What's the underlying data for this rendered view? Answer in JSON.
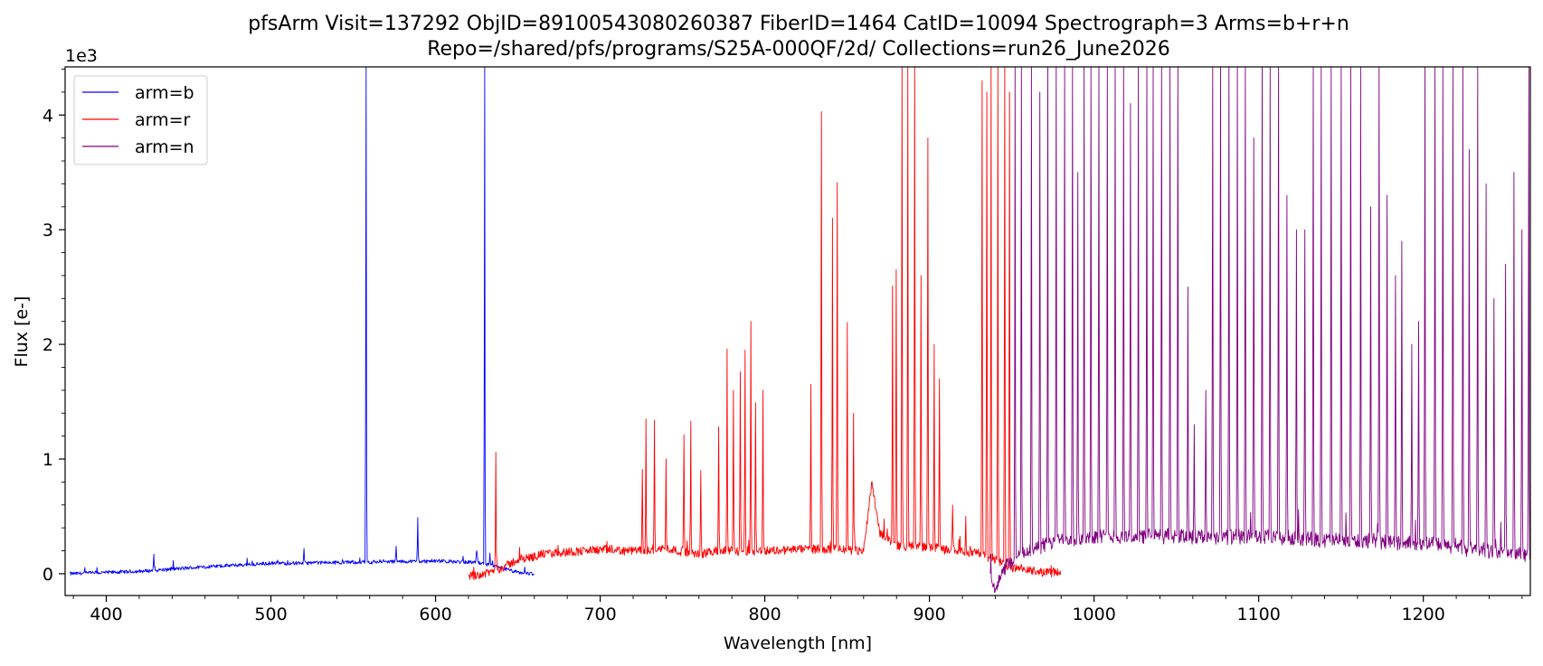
{
  "chart_data": {
    "type": "line",
    "title": "pfsArm  Visit=137292  ObjID=89100543080260387  FiberID=1464  CatID=10094  Spectrograph=3  Arms=b+r+n",
    "subtitle": "Repo=/shared/pfs/programs/S25A-000QF/2d/  Collections=run26_June2026",
    "xlabel": "Wavelength [nm]",
    "ylabel": "Flux [e-]",
    "y_offset_label": "1e3",
    "xlim": [
      375,
      1265
    ],
    "ylim": [
      -0.19,
      4.42
    ],
    "y_units_multiplier": 1000,
    "x_ticks": [
      400,
      500,
      600,
      700,
      800,
      900,
      1000,
      1100,
      1200
    ],
    "x_tick_labels": [
      "400",
      "500",
      "600",
      "700",
      "800",
      "900",
      "1000",
      "1100",
      "1200"
    ],
    "y_ticks": [
      0,
      1,
      2,
      3,
      4
    ],
    "y_tick_labels": [
      "0",
      "1",
      "2",
      "3",
      "4"
    ],
    "grid": false,
    "legend_position": "top-left",
    "series": [
      {
        "name": "arm=b",
        "color": "#0000ff",
        "continuum": [
          [
            378,
            0.0
          ],
          [
            420,
            0.02
          ],
          [
            460,
            0.06
          ],
          [
            500,
            0.09
          ],
          [
            550,
            0.1
          ],
          [
            600,
            0.11
          ],
          [
            625,
            0.1
          ],
          [
            640,
            0.05
          ],
          [
            650,
            0.01
          ],
          [
            660,
            0.0
          ]
        ],
        "lines": [
          [
            429,
            0.17
          ],
          [
            520,
            0.22
          ],
          [
            557.7,
            4.42
          ],
          [
            576,
            0.24
          ],
          [
            589.3,
            0.49
          ],
          [
            625,
            0.2
          ],
          [
            630.0,
            4.42
          ],
          [
            633,
            0.18
          ]
        ]
      },
      {
        "name": "arm=r",
        "color": "#ff0000",
        "continuum": [
          [
            620,
            -0.02
          ],
          [
            630,
            0.0
          ],
          [
            640,
            0.05
          ],
          [
            650,
            0.12
          ],
          [
            665,
            0.17
          ],
          [
            680,
            0.19
          ],
          [
            700,
            0.21
          ],
          [
            720,
            0.2
          ],
          [
            740,
            0.22
          ],
          [
            760,
            0.17
          ],
          [
            770,
            0.2
          ],
          [
            800,
            0.2
          ],
          [
            830,
            0.22
          ],
          [
            860,
            0.2
          ],
          [
            865,
            0.8
          ],
          [
            870,
            0.35
          ],
          [
            880,
            0.25
          ],
          [
            900,
            0.23
          ],
          [
            930,
            0.18
          ],
          [
            940,
            0.12
          ],
          [
            950,
            0.05
          ],
          [
            965,
            0.02
          ],
          [
            980,
            0.01
          ]
        ],
        "lines": [
          [
            636.5,
            1.06
          ],
          [
            725.5,
            0.91
          ],
          [
            727.8,
            1.35
          ],
          [
            733,
            1.34
          ],
          [
            740,
            1.0
          ],
          [
            751,
            1.21
          ],
          [
            755.2,
            1.33
          ],
          [
            761,
            0.9
          ],
          [
            772,
            1.28
          ],
          [
            777,
            1.96
          ],
          [
            781,
            1.6
          ],
          [
            785,
            1.76
          ],
          [
            788,
            1.95
          ],
          [
            791.5,
            2.2
          ],
          [
            794.5,
            1.49
          ],
          [
            799,
            1.6
          ],
          [
            828,
            1.65
          ],
          [
            834.5,
            4.03
          ],
          [
            841,
            3.1
          ],
          [
            844,
            3.41
          ],
          [
            850,
            2.19
          ],
          [
            854,
            1.4
          ],
          [
            877.5,
            2.51
          ],
          [
            880,
            2.65
          ],
          [
            883.5,
            4.42
          ],
          [
            887,
            4.42
          ],
          [
            891,
            4.42
          ],
          [
            895,
            2.6
          ],
          [
            899,
            3.8
          ],
          [
            903,
            2.0
          ],
          [
            906,
            1.7
          ],
          [
            914,
            0.6
          ],
          [
            922,
            0.5
          ],
          [
            932,
            4.3
          ],
          [
            935,
            4.2
          ],
          [
            937.5,
            4.42
          ],
          [
            941.5,
            4.42
          ],
          [
            945.8,
            4.42
          ],
          [
            948.5,
            4.2
          ]
        ]
      },
      {
        "name": "arm=n",
        "color": "#800080",
        "continuum": [
          [
            937,
            -0.05
          ],
          [
            940,
            -0.12
          ],
          [
            948,
            0.1
          ],
          [
            960,
            0.2
          ],
          [
            980,
            0.3
          ],
          [
            1000,
            0.32
          ],
          [
            1050,
            0.33
          ],
          [
            1100,
            0.32
          ],
          [
            1150,
            0.29
          ],
          [
            1200,
            0.27
          ],
          [
            1240,
            0.2
          ],
          [
            1265,
            0.17
          ]
        ],
        "lines": [
          [
            952,
            4.42
          ],
          [
            956,
            4.42
          ],
          [
            962,
            4.42
          ],
          [
            967,
            4.2
          ],
          [
            972,
            4.42
          ],
          [
            977,
            4.42
          ],
          [
            982,
            4.42
          ],
          [
            987,
            4.42
          ],
          [
            990,
            3.5
          ],
          [
            994,
            4.42
          ],
          [
            998,
            4.42
          ],
          [
            1003,
            4.42
          ],
          [
            1008,
            4.42
          ],
          [
            1013,
            4.42
          ],
          [
            1018,
            4.42
          ],
          [
            1022,
            4.1
          ],
          [
            1027,
            4.42
          ],
          [
            1032,
            4.42
          ],
          [
            1036,
            4.42
          ],
          [
            1041,
            4.42
          ],
          [
            1046,
            4.42
          ],
          [
            1051,
            4.42
          ],
          [
            1057,
            2.5
          ],
          [
            1061,
            1.3
          ],
          [
            1068,
            1.6
          ],
          [
            1072,
            4.42
          ],
          [
            1077,
            4.42
          ],
          [
            1082,
            4.42
          ],
          [
            1087,
            4.42
          ],
          [
            1092,
            4.42
          ],
          [
            1097,
            3.8
          ],
          [
            1102,
            4.42
          ],
          [
            1107,
            4.42
          ],
          [
            1112,
            4.42
          ],
          [
            1117,
            3.3
          ],
          [
            1123,
            3.0
          ],
          [
            1128,
            3.0
          ],
          [
            1133,
            4.42
          ],
          [
            1138,
            4.42
          ],
          [
            1144,
            4.42
          ],
          [
            1150,
            4.42
          ],
          [
            1156,
            4.42
          ],
          [
            1162,
            4.42
          ],
          [
            1168,
            3.2
          ],
          [
            1173,
            4.42
          ],
          [
            1178,
            3.3
          ],
          [
            1183,
            2.6
          ],
          [
            1187,
            2.9
          ],
          [
            1193,
            2.0
          ],
          [
            1197,
            2.2
          ],
          [
            1201,
            4.42
          ],
          [
            1207,
            4.42
          ],
          [
            1212,
            4.42
          ],
          [
            1218,
            4.42
          ],
          [
            1224,
            4.42
          ],
          [
            1228,
            3.7
          ],
          [
            1233,
            4.42
          ],
          [
            1238,
            3.4
          ],
          [
            1243,
            2.4
          ],
          [
            1250,
            2.7
          ],
          [
            1255,
            3.5
          ],
          [
            1260,
            3.0
          ],
          [
            1264,
            4.42
          ]
        ]
      }
    ]
  }
}
